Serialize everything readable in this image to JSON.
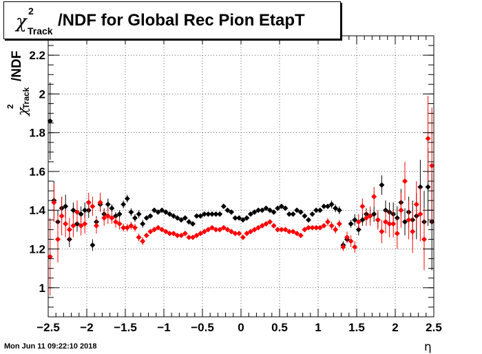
{
  "title": {
    "chi": "χ",
    "sup": "2",
    "sub": "Track",
    "main": "/NDF for Global Rec Pion EtapT"
  },
  "y_axis_label": {
    "chi": "χ",
    "sup": "2",
    "sub": "Track",
    "main": "/NDF"
  },
  "x_axis_label": "η",
  "timestamp": "Mon Jun 11 09:22:10 2018",
  "colors": {
    "series_black": "#000000",
    "series_red": "#ff0000",
    "grid": "#000000"
  },
  "chart_data": {
    "type": "scatter",
    "title": "χ2_Track/NDF for Global Rec Pion EtapT",
    "xlabel": "η",
    "ylabel": "χ2_Track/NDF",
    "xlim": [
      -2.5,
      2.5
    ],
    "ylim": [
      0.85,
      2.3
    ],
    "grid": true,
    "x_ticks": [
      -2.5,
      -2,
      -1.5,
      -1,
      -0.5,
      0,
      0.5,
      1,
      1.5,
      2,
      2.5
    ],
    "x_tick_labels": [
      "−2.5",
      "−2",
      "−1.5",
      "−1",
      "−0.5",
      "0",
      "0.5",
      "1",
      "1.5",
      "2",
      "2.5"
    ],
    "y_ticks": [
      1,
      1.2,
      1.4,
      1.6,
      1.8,
      2,
      2.2
    ],
    "y_tick_labels": [
      "1",
      "1.2",
      "1.4",
      "1.6",
      "1.8",
      "2",
      "2.2"
    ],
    "series": [
      {
        "color": "#000000",
        "points": [
          [
            -2.475,
            1.86,
            0.2
          ],
          [
            -2.425,
            1.45,
            0.1
          ],
          [
            -2.375,
            1.34,
            0.06
          ],
          [
            -2.325,
            1.41,
            0.06
          ],
          [
            -2.275,
            1.42,
            0.06
          ],
          [
            -2.225,
            1.25,
            0.04
          ],
          [
            -2.175,
            1.4,
            0.04
          ],
          [
            -2.125,
            1.33,
            0.04
          ],
          [
            -2.075,
            1.38,
            0.04
          ],
          [
            -2.025,
            1.4,
            0.04
          ],
          [
            -1.975,
            1.4,
            0.04
          ],
          [
            -1.925,
            1.22,
            0.03
          ],
          [
            -1.875,
            1.34,
            0.03
          ],
          [
            -1.825,
            1.43,
            0.03
          ],
          [
            -1.775,
            1.38,
            0.03
          ],
          [
            -1.725,
            1.43,
            0.03
          ],
          [
            -1.675,
            1.41,
            0.02
          ],
          [
            -1.625,
            1.37,
            0.02
          ],
          [
            -1.575,
            1.38,
            0.02
          ],
          [
            -1.525,
            1.43,
            0.02
          ],
          [
            -1.475,
            1.46,
            0.02
          ],
          [
            -1.425,
            1.39,
            0.02
          ],
          [
            -1.375,
            1.36,
            0.02
          ],
          [
            -1.325,
            1.38,
            0.02
          ],
          [
            -1.275,
            1.33,
            0.02
          ],
          [
            -1.225,
            1.36,
            0.01
          ],
          [
            -1.175,
            1.37,
            0.01
          ],
          [
            -1.125,
            1.4,
            0.01
          ],
          [
            -1.075,
            1.39,
            0.01
          ],
          [
            -1.025,
            1.4,
            0.01
          ],
          [
            -0.975,
            1.39,
            0.01
          ],
          [
            -0.925,
            1.38,
            0.01
          ],
          [
            -0.875,
            1.37,
            0.01
          ],
          [
            -0.825,
            1.36,
            0.01
          ],
          [
            -0.775,
            1.35,
            0.01
          ],
          [
            -0.725,
            1.36,
            0.01
          ],
          [
            -0.675,
            1.34,
            0.01
          ],
          [
            -0.625,
            1.33,
            0.01
          ],
          [
            -0.575,
            1.37,
            0.01
          ],
          [
            -0.525,
            1.37,
            0.01
          ],
          [
            -0.475,
            1.38,
            0.01
          ],
          [
            -0.425,
            1.38,
            0.01
          ],
          [
            -0.375,
            1.38,
            0.01
          ],
          [
            -0.325,
            1.38,
            0.01
          ],
          [
            -0.275,
            1.38,
            0.01
          ],
          [
            -0.225,
            1.42,
            0.01
          ],
          [
            -0.175,
            1.4,
            0.01
          ],
          [
            -0.125,
            1.39,
            0.01
          ],
          [
            -0.075,
            1.36,
            0.01
          ],
          [
            -0.025,
            1.36,
            0.01
          ],
          [
            0.025,
            1.35,
            0.01
          ],
          [
            0.075,
            1.36,
            0.01
          ],
          [
            0.125,
            1.38,
            0.01
          ],
          [
            0.175,
            1.39,
            0.01
          ],
          [
            0.225,
            1.4,
            0.01
          ],
          [
            0.275,
            1.4,
            0.01
          ],
          [
            0.325,
            1.41,
            0.01
          ],
          [
            0.375,
            1.4,
            0.01
          ],
          [
            0.425,
            1.39,
            0.01
          ],
          [
            0.475,
            1.41,
            0.01
          ],
          [
            0.525,
            1.42,
            0.01
          ],
          [
            0.575,
            1.41,
            0.01
          ],
          [
            0.625,
            1.38,
            0.01
          ],
          [
            0.675,
            1.38,
            0.01
          ],
          [
            0.725,
            1.4,
            0.01
          ],
          [
            0.775,
            1.39,
            0.01
          ],
          [
            0.825,
            1.37,
            0.01
          ],
          [
            0.875,
            1.35,
            0.01
          ],
          [
            0.925,
            1.38,
            0.01
          ],
          [
            0.975,
            1.4,
            0.01
          ],
          [
            1.025,
            1.4,
            0.01
          ],
          [
            1.075,
            1.42,
            0.01
          ],
          [
            1.125,
            1.42,
            0.01
          ],
          [
            1.175,
            1.43,
            0.02
          ],
          [
            1.225,
            1.41,
            0.02
          ],
          [
            1.275,
            1.4,
            0.02
          ],
          [
            1.325,
            1.22,
            0.02
          ],
          [
            1.375,
            1.25,
            0.02
          ],
          [
            1.425,
            1.33,
            0.02
          ],
          [
            1.475,
            1.35,
            0.03
          ],
          [
            1.525,
            1.3,
            0.03
          ],
          [
            1.575,
            1.35,
            0.03
          ],
          [
            1.625,
            1.38,
            0.03
          ],
          [
            1.675,
            1.37,
            0.03
          ],
          [
            1.725,
            1.38,
            0.04
          ],
          [
            1.775,
            1.35,
            0.04
          ],
          [
            1.825,
            1.53,
            0.05
          ],
          [
            1.875,
            1.4,
            0.05
          ],
          [
            1.925,
            1.39,
            0.05
          ],
          [
            1.975,
            1.38,
            0.06
          ],
          [
            2.025,
            1.36,
            0.06
          ],
          [
            2.075,
            1.44,
            0.07
          ],
          [
            2.125,
            1.34,
            0.07
          ],
          [
            2.175,
            1.39,
            0.08
          ],
          [
            2.225,
            1.35,
            0.1
          ],
          [
            2.275,
            1.37,
            0.12
          ],
          [
            2.325,
            1.52,
            0.14
          ],
          [
            2.375,
            1.34,
            0.16
          ],
          [
            2.425,
            1.52,
            0.2
          ],
          [
            2.475,
            1.34,
            0.25
          ]
        ]
      },
      {
        "color": "#ff0000",
        "points": [
          [
            -2.475,
            1.16,
            0.2
          ],
          [
            -2.425,
            1.44,
            0.1
          ],
          [
            -2.375,
            1.25,
            0.12
          ],
          [
            -2.325,
            1.37,
            0.1
          ],
          [
            -2.275,
            1.33,
            0.07
          ],
          [
            -2.225,
            1.3,
            0.06
          ],
          [
            -2.175,
            1.32,
            0.06
          ],
          [
            -2.125,
            1.39,
            0.06
          ],
          [
            -2.075,
            1.32,
            0.05
          ],
          [
            -2.025,
            1.33,
            0.05
          ],
          [
            -1.975,
            1.44,
            0.05
          ],
          [
            -1.925,
            1.42,
            0.05
          ],
          [
            -1.875,
            1.32,
            0.04
          ],
          [
            -1.825,
            1.44,
            0.05
          ],
          [
            -1.775,
            1.36,
            0.04
          ],
          [
            -1.725,
            1.37,
            0.04
          ],
          [
            -1.675,
            1.36,
            0.03
          ],
          [
            -1.625,
            1.34,
            0.03
          ],
          [
            -1.575,
            1.33,
            0.03
          ],
          [
            -1.525,
            1.31,
            0.02
          ],
          [
            -1.475,
            1.31,
            0.02
          ],
          [
            -1.425,
            1.32,
            0.02
          ],
          [
            -1.375,
            1.31,
            0.02
          ],
          [
            -1.325,
            1.26,
            0.02
          ],
          [
            -1.275,
            1.24,
            0.02
          ],
          [
            -1.225,
            1.27,
            0.01
          ],
          [
            -1.175,
            1.29,
            0.01
          ],
          [
            -1.125,
            1.3,
            0.01
          ],
          [
            -1.075,
            1.31,
            0.01
          ],
          [
            -1.025,
            1.3,
            0.01
          ],
          [
            -0.975,
            1.29,
            0.01
          ],
          [
            -0.925,
            1.28,
            0.01
          ],
          [
            -0.875,
            1.28,
            0.01
          ],
          [
            -0.825,
            1.27,
            0.01
          ],
          [
            -0.775,
            1.27,
            0.01
          ],
          [
            -0.725,
            1.28,
            0.01
          ],
          [
            -0.675,
            1.26,
            0.01
          ],
          [
            -0.625,
            1.26,
            0.01
          ],
          [
            -0.575,
            1.27,
            0.01
          ],
          [
            -0.525,
            1.28,
            0.01
          ],
          [
            -0.475,
            1.29,
            0.01
          ],
          [
            -0.425,
            1.3,
            0.01
          ],
          [
            -0.375,
            1.31,
            0.01
          ],
          [
            -0.325,
            1.3,
            0.01
          ],
          [
            -0.275,
            1.3,
            0.01
          ],
          [
            -0.225,
            1.31,
            0.01
          ],
          [
            -0.175,
            1.3,
            0.01
          ],
          [
            -0.125,
            1.29,
            0.01
          ],
          [
            -0.075,
            1.28,
            0.01
          ],
          [
            -0.025,
            1.28,
            0.01
          ],
          [
            0.025,
            1.26,
            0.01
          ],
          [
            0.075,
            1.28,
            0.01
          ],
          [
            0.125,
            1.29,
            0.01
          ],
          [
            0.175,
            1.3,
            0.01
          ],
          [
            0.225,
            1.31,
            0.01
          ],
          [
            0.275,
            1.32,
            0.01
          ],
          [
            0.325,
            1.33,
            0.01
          ],
          [
            0.375,
            1.34,
            0.01
          ],
          [
            0.425,
            1.32,
            0.01
          ],
          [
            0.475,
            1.3,
            0.01
          ],
          [
            0.525,
            1.3,
            0.01
          ],
          [
            0.575,
            1.3,
            0.01
          ],
          [
            0.625,
            1.29,
            0.01
          ],
          [
            0.675,
            1.29,
            0.01
          ],
          [
            0.725,
            1.28,
            0.01
          ],
          [
            0.775,
            1.27,
            0.01
          ],
          [
            0.825,
            1.3,
            0.01
          ],
          [
            0.875,
            1.31,
            0.01
          ],
          [
            0.925,
            1.31,
            0.01
          ],
          [
            0.975,
            1.31,
            0.01
          ],
          [
            1.025,
            1.31,
            0.01
          ],
          [
            1.075,
            1.32,
            0.01
          ],
          [
            1.125,
            1.34,
            0.02
          ],
          [
            1.175,
            1.32,
            0.02
          ],
          [
            1.225,
            1.3,
            0.02
          ],
          [
            1.275,
            1.33,
            0.02
          ],
          [
            1.325,
            1.21,
            0.02
          ],
          [
            1.375,
            1.26,
            0.03
          ],
          [
            1.425,
            1.24,
            0.03
          ],
          [
            1.475,
            1.21,
            0.03
          ],
          [
            1.525,
            1.34,
            0.04
          ],
          [
            1.575,
            1.42,
            0.04
          ],
          [
            1.625,
            1.36,
            0.04
          ],
          [
            1.675,
            1.37,
            0.05
          ],
          [
            1.725,
            1.47,
            0.05
          ],
          [
            1.775,
            1.35,
            0.05
          ],
          [
            1.825,
            1.29,
            0.06
          ],
          [
            1.875,
            1.34,
            0.06
          ],
          [
            1.925,
            1.33,
            0.07
          ],
          [
            1.975,
            1.33,
            0.07
          ],
          [
            2.025,
            1.28,
            0.08
          ],
          [
            2.075,
            1.4,
            0.09
          ],
          [
            2.125,
            1.55,
            0.1
          ],
          [
            2.175,
            1.35,
            0.1
          ],
          [
            2.225,
            1.29,
            0.11
          ],
          [
            2.275,
            1.43,
            0.12
          ],
          [
            2.325,
            1.38,
            0.14
          ],
          [
            2.375,
            1.25,
            0.16
          ],
          [
            2.425,
            1.77,
            0.22
          ],
          [
            2.475,
            1.63,
            0.3
          ]
        ]
      }
    ]
  }
}
